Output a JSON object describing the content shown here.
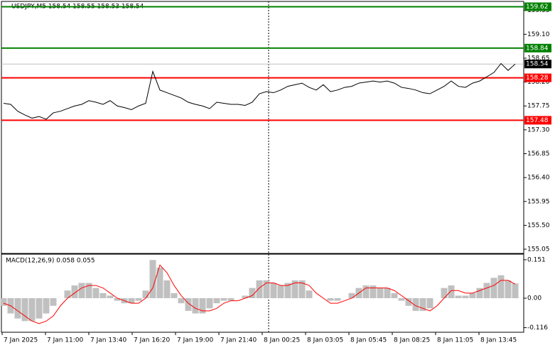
{
  "chart_data": [
    {
      "type": "line",
      "title": "USDJPY,M5  158.54 158.55 158.53 158.54",
      "ylim": [
        154.97,
        159.72
      ],
      "yticks": [
        159.55,
        {
          "value": 159.1,
          "label": "159.10"
        },
        158.65,
        {
          "value": 158.2,
          "label": "158.20"
        },
        157.75,
        {
          "value": 157.3,
          "label": "157.30"
        },
        156.85,
        {
          "value": 156.4,
          "label": "156.40"
        },
        155.95,
        {
          "value": 155.5,
          "label": "155.50"
        },
        155.05
      ],
      "series": [
        {
          "name": "USDJPY",
          "color": "#000000",
          "values": [
            157.8,
            157.78,
            157.65,
            157.58,
            157.52,
            157.55,
            157.5,
            157.62,
            157.65,
            157.7,
            157.75,
            157.78,
            157.85,
            157.82,
            157.78,
            157.85,
            157.75,
            157.72,
            157.68,
            157.75,
            157.8,
            158.4,
            158.05,
            158.0,
            157.95,
            157.9,
            157.82,
            157.78,
            157.75,
            157.7,
            157.82,
            157.8,
            157.78,
            157.78,
            157.76,
            157.82,
            157.98,
            158.02,
            158.0,
            158.05,
            158.12,
            158.15,
            158.18,
            158.1,
            158.05,
            158.15,
            158.02,
            158.05,
            158.1,
            158.12,
            158.18,
            158.2,
            158.22,
            158.2,
            158.22,
            158.18,
            158.1,
            158.08,
            158.05,
            158.0,
            157.98,
            158.05,
            158.12,
            158.22,
            158.12,
            158.1,
            158.18,
            158.22,
            158.3,
            158.38,
            158.55,
            158.42,
            158.54
          ]
        }
      ],
      "levels": [
        {
          "value": 159.62,
          "color": "#008000"
        },
        {
          "value": 158.84,
          "color": "#008000"
        },
        {
          "value": 158.28,
          "color": "#ff0000"
        },
        {
          "value": 157.48,
          "color": "#ff0000"
        }
      ],
      "current_price": 158.54,
      "xticks": [
        "7 Jan 2025",
        "7 Jan 11:00",
        "7 Jan 13:40",
        "7 Jan 16:20",
        "7 Jan 19:00",
        "7 Jan 21:40",
        "8 Jan 00:25",
        "8 Jan 03:05",
        "8 Jan 05:45",
        "8 Jan 08:25",
        "8 Jan 11:05",
        "8 Jan 13:45"
      ]
    },
    {
      "type": "macd",
      "title": "MACD(12,26,9) 0.058 0.055",
      "ylim": [
        -0.134,
        0.173
      ],
      "yticks": [
        0.151,
        {
          "value": 0,
          "label": "0.00"
        },
        -0.116
      ],
      "series": [
        {
          "name": "MACD",
          "color": "#c0c0c0",
          "values": [
            -0.03,
            -0.06,
            -0.08,
            -0.09,
            -0.09,
            -0.08,
            -0.06,
            -0.03,
            0.0,
            0.03,
            0.05,
            0.06,
            0.06,
            0.04,
            0.02,
            0.01,
            -0.01,
            -0.02,
            -0.02,
            -0.01,
            0.03,
            0.15,
            0.12,
            0.07,
            0.02,
            -0.02,
            -0.05,
            -0.06,
            -0.06,
            -0.04,
            -0.02,
            -0.01,
            -0.01,
            0.0,
            0.01,
            0.04,
            0.07,
            0.07,
            0.06,
            0.05,
            0.06,
            0.07,
            0.07,
            0.03,
            0.0,
            0.0,
            -0.01,
            -0.01,
            0.0,
            0.02,
            0.04,
            0.05,
            0.05,
            0.04,
            0.04,
            0.02,
            -0.01,
            -0.03,
            -0.05,
            -0.05,
            -0.04,
            0.0,
            0.04,
            0.05,
            0.01,
            0.01,
            0.02,
            0.04,
            0.06,
            0.08,
            0.09,
            0.07,
            0.058
          ]
        },
        {
          "name": "Signal",
          "color": "#ff0000",
          "values": [
            -0.02,
            -0.03,
            -0.05,
            -0.07,
            -0.09,
            -0.1,
            -0.09,
            -0.07,
            -0.03,
            0.0,
            0.02,
            0.04,
            0.05,
            0.05,
            0.04,
            0.02,
            0.0,
            -0.01,
            -0.02,
            -0.02,
            0.0,
            0.04,
            0.13,
            0.1,
            0.05,
            0.01,
            -0.02,
            -0.04,
            -0.05,
            -0.05,
            -0.04,
            -0.02,
            -0.01,
            -0.01,
            0.0,
            0.01,
            0.04,
            0.06,
            0.06,
            0.05,
            0.05,
            0.06,
            0.06,
            0.05,
            0.02,
            0.0,
            -0.02,
            -0.02,
            -0.01,
            0.0,
            0.02,
            0.04,
            0.04,
            0.04,
            0.04,
            0.03,
            0.01,
            -0.01,
            -0.03,
            -0.04,
            -0.05,
            -0.03,
            0.0,
            0.03,
            0.03,
            0.02,
            0.02,
            0.03,
            0.04,
            0.05,
            0.07,
            0.07,
            0.055
          ]
        }
      ]
    }
  ]
}
